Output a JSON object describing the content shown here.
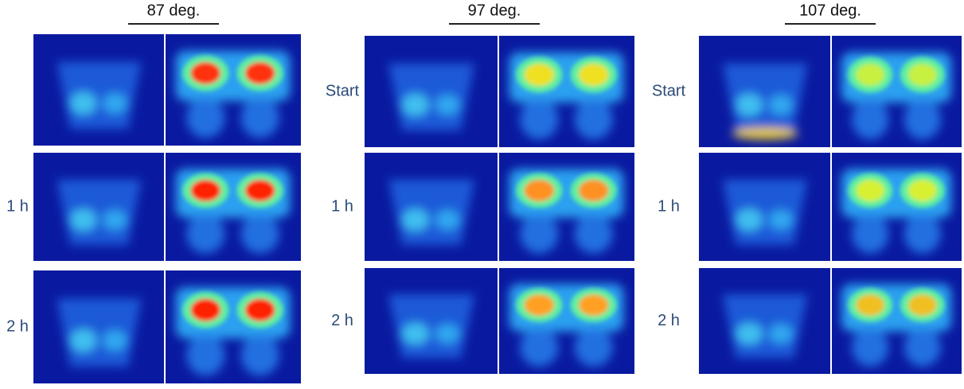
{
  "columns": [
    {
      "title": "87 deg.",
      "row_labels": [
        "1 h",
        "2 h"
      ]
    },
    {
      "title": "97 deg.",
      "row_labels": [
        "Start",
        "1 h",
        "2 h"
      ]
    },
    {
      "title": "107 deg.",
      "row_labels": [
        "Start",
        "1 h",
        "2 h"
      ]
    }
  ]
}
